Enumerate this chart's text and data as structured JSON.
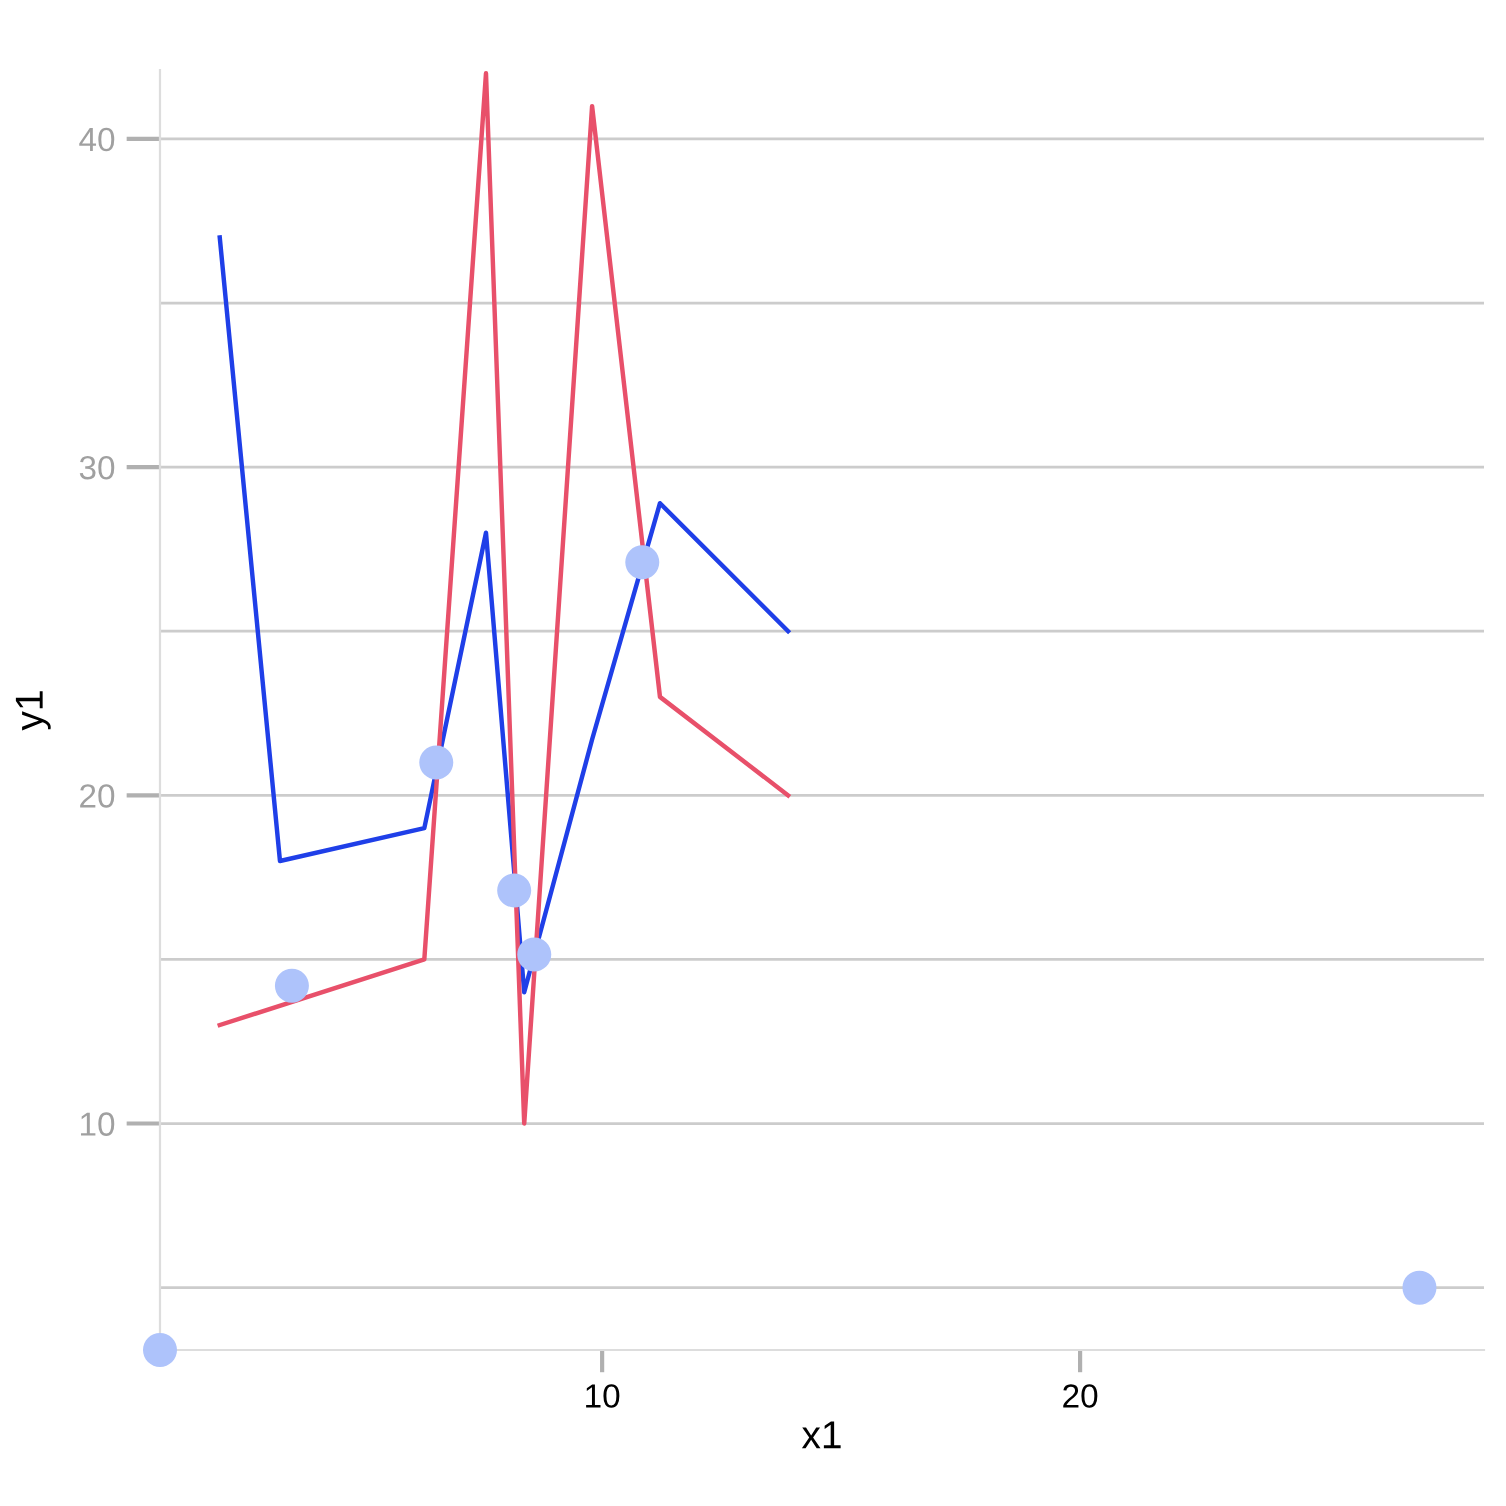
{
  "chart_data": {
    "type": "line",
    "xlabel": "x1",
    "ylabel": "y1",
    "xlim": [
      0.75,
      28.45
    ],
    "ylim": [
      3.1,
      42.1
    ],
    "xticks": [
      10,
      20
    ],
    "yticks": [
      {
        "value": 5,
        "label": null
      },
      10,
      {
        "value": 15,
        "label": null
      },
      20,
      {
        "value": 25,
        "label": null
      },
      30,
      {
        "value": 35,
        "label": null
      },
      40
    ],
    "grid": "y",
    "series": [
      {
        "color": "#1f3fe8",
        "x": [
          2.0,
          3.26,
          6.28,
          7.57,
          8.37,
          9.79,
          11.21,
          13.89
        ],
        "values": [
          37.0,
          18.0,
          19.0,
          28.0,
          14.0,
          21.7,
          28.9,
          25.0
        ]
      },
      {
        "color": "#e8506a",
        "x": [
          2.0,
          6.28,
          7.57,
          8.37,
          9.79,
          11.21,
          13.89
        ],
        "values": [
          13.0,
          15.0,
          42.0,
          10.0,
          41.0,
          23.0,
          20.0
        ]
      },
      {
        "type": "scatter",
        "color": "#aec3fb",
        "x": [
          0.75,
          3.51,
          6.53,
          8.16,
          8.58,
          10.84,
          27.1
        ],
        "values": [
          3.1,
          14.2,
          21.0,
          17.1,
          15.15,
          27.1,
          5.0
        ]
      }
    ]
  }
}
